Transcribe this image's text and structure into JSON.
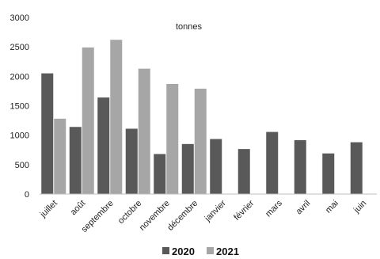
{
  "chart_data": {
    "type": "bar",
    "unit_label": "tonnes",
    "categories": [
      "juillet",
      "août",
      "septembre",
      "octobre",
      "novembre",
      "décembre",
      "janvier",
      "février",
      "mars",
      "avril",
      "mai",
      "juin"
    ],
    "series": [
      {
        "name": "2020",
        "color": "#595959",
        "values": [
          2050,
          1140,
          1640,
          1110,
          680,
          850,
          935,
          765,
          1055,
          915,
          690,
          880
        ]
      },
      {
        "name": "2021",
        "color": "#a6a6a6",
        "values": [
          1280,
          2490,
          2620,
          2130,
          1870,
          1790,
          null,
          null,
          null,
          null,
          null,
          null
        ]
      }
    ],
    "y_ticks": [
      "0",
      "500",
      "1000",
      "1500",
      "2000",
      "2500",
      "3000"
    ],
    "ylim": [
      0,
      3000
    ],
    "grid": false,
    "legend_position": "bottom"
  }
}
